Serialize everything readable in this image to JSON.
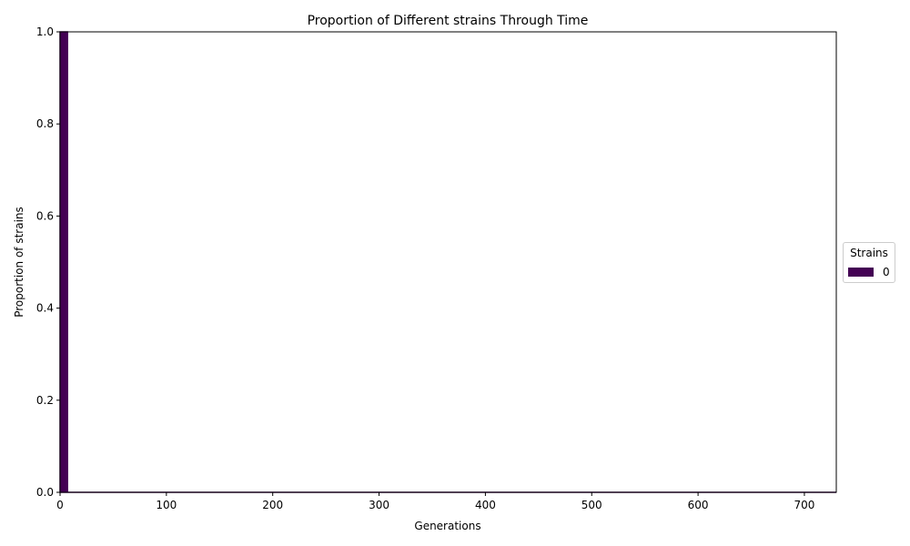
{
  "chart_data": {
    "type": "area",
    "title": "Proportion of Different strains Through Time",
    "xlabel": "Generations",
    "ylabel": "Proportion of strains",
    "xlim": [
      0,
      730
    ],
    "ylim": [
      0,
      1.0
    ],
    "xticks": [
      0,
      100,
      200,
      300,
      400,
      500,
      600,
      700
    ],
    "yticks": [
      0.0,
      0.2,
      0.4,
      0.6,
      0.8,
      1.0
    ],
    "xtick_labels": [
      "0",
      "100",
      "200",
      "300",
      "400",
      "500",
      "600",
      "700"
    ],
    "ytick_labels": [
      "0.0",
      "0.2",
      "0.4",
      "0.6",
      "0.8",
      "1.0"
    ],
    "grid": false,
    "legend": {
      "title": "Strains",
      "placement": "right-center"
    },
    "series": [
      {
        "name": "0",
        "color": "#440154",
        "x": [
          0,
          7,
          7,
          730
        ],
        "y": [
          1.0,
          1.0,
          0.0,
          0.0
        ]
      }
    ]
  }
}
